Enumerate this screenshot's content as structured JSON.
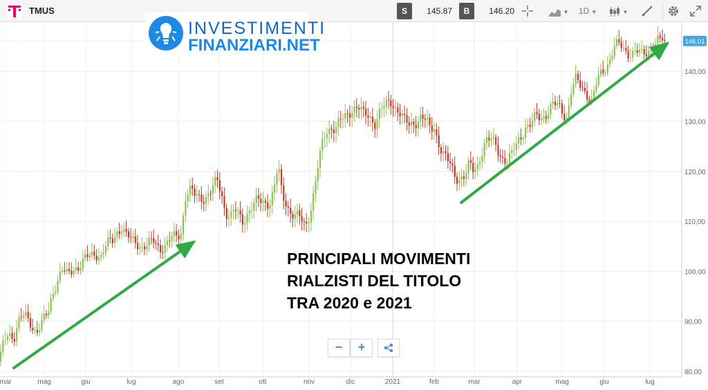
{
  "toolbar": {
    "symbol": "TMUS",
    "sell": {
      "label": "S",
      "price": "145.87"
    },
    "buy": {
      "label": "B",
      "price": "146.20"
    },
    "interval": "1D",
    "icons": {
      "brand": "telekom-t-logo-icon",
      "crosshair": "crosshair-icon",
      "chart_style": "area-chart-icon",
      "candles": "candlestick-icon",
      "draw": "drawing-tools-icon",
      "settings": "gear-icon",
      "fullscreen": "fullscreen-icon"
    },
    "brand_color": "#e20074"
  },
  "watermark": {
    "line1": "INVESTIMENTI",
    "line2": "FINANZIARI.NET"
  },
  "caption": {
    "line1": "PRINCIPALI MOVIMENTI",
    "line2": "RIALZISTI DEL TITOLO",
    "line3": "TRA 2020 e 2021"
  },
  "zoom": {
    "minus": "−",
    "plus": "+",
    "share_icon": "share-icon"
  },
  "chart_data": {
    "type": "candlestick",
    "ylim": [
      80,
      150
    ],
    "y_ticks": [
      "80,00",
      "90,00",
      "100,00",
      "110,00",
      "120,00",
      "130,00",
      "140,00"
    ],
    "x_ticks": [
      "mar",
      "mag",
      "giu",
      "lug",
      "ago",
      "set",
      "ott",
      "nov",
      "dic",
      "2021",
      "feb",
      "mar",
      "apr",
      "mag",
      "giu",
      "lug"
    ],
    "last_price": 146.01,
    "last_price_label": "146,01",
    "up_color": "#8cc152",
    "down_color": "#c0392b",
    "arrow_color": "#2eab42",
    "close_series": [
      [
        0,
        82
      ],
      [
        6,
        86
      ],
      [
        12,
        88
      ],
      [
        20,
        87
      ],
      [
        28,
        90
      ],
      [
        36,
        91
      ],
      [
        44,
        90
      ],
      [
        52,
        88
      ],
      [
        60,
        89
      ],
      [
        70,
        92
      ],
      [
        76,
        96
      ],
      [
        82,
        98
      ],
      [
        90,
        100
      ],
      [
        98,
        99
      ],
      [
        106,
        101
      ],
      [
        114,
        101
      ],
      [
        122,
        102
      ],
      [
        130,
        103
      ],
      [
        138,
        104
      ],
      [
        146,
        103
      ],
      [
        154,
        105
      ],
      [
        162,
        106
      ],
      [
        168,
        108
      ],
      [
        176,
        109
      ],
      [
        182,
        107
      ],
      [
        190,
        106
      ],
      [
        198,
        106
      ],
      [
        206,
        105
      ],
      [
        214,
        105
      ],
      [
        222,
        106
      ],
      [
        230,
        105
      ],
      [
        238,
        105
      ],
      [
        246,
        106
      ],
      [
        254,
        107
      ],
      [
        262,
        108
      ],
      [
        268,
        115
      ],
      [
        274,
        116
      ],
      [
        282,
        115
      ],
      [
        290,
        115
      ],
      [
        298,
        115
      ],
      [
        306,
        116
      ],
      [
        314,
        118
      ],
      [
        320,
        116
      ],
      [
        326,
        112
      ],
      [
        334,
        111
      ],
      [
        342,
        112
      ],
      [
        350,
        110
      ],
      [
        358,
        112
      ],
      [
        366,
        113
      ],
      [
        374,
        114
      ],
      [
        382,
        114
      ],
      [
        390,
        114
      ],
      [
        396,
        116
      ],
      [
        402,
        121
      ],
      [
        408,
        115
      ],
      [
        414,
        114
      ],
      [
        420,
        112
      ],
      [
        428,
        111
      ],
      [
        436,
        110
      ],
      [
        442,
        109
      ],
      [
        448,
        112
      ],
      [
        454,
        116
      ],
      [
        460,
        121
      ],
      [
        466,
        125
      ],
      [
        472,
        128
      ],
      [
        478,
        129
      ],
      [
        486,
        129
      ],
      [
        494,
        130
      ],
      [
        502,
        131
      ],
      [
        510,
        133
      ],
      [
        518,
        133
      ],
      [
        526,
        131
      ],
      [
        534,
        131
      ],
      [
        542,
        130
      ],
      [
        550,
        132
      ],
      [
        558,
        133
      ],
      [
        566,
        134
      ],
      [
        572,
        133
      ],
      [
        578,
        132
      ],
      [
        584,
        130
      ],
      [
        592,
        129
      ],
      [
        600,
        130
      ],
      [
        608,
        131
      ],
      [
        616,
        130
      ],
      [
        622,
        128
      ],
      [
        628,
        129
      ],
      [
        634,
        126
      ],
      [
        640,
        124
      ],
      [
        646,
        122
      ],
      [
        652,
        121
      ],
      [
        658,
        119
      ],
      [
        666,
        119
      ],
      [
        672,
        119
      ],
      [
        678,
        121
      ],
      [
        684,
        120
      ],
      [
        690,
        121
      ],
      [
        696,
        124
      ],
      [
        702,
        126
      ],
      [
        710,
        126
      ],
      [
        718,
        125
      ],
      [
        726,
        123
      ],
      [
        734,
        122
      ],
      [
        740,
        123
      ],
      [
        746,
        125
      ],
      [
        752,
        127
      ],
      [
        760,
        129
      ],
      [
        768,
        129
      ],
      [
        776,
        131
      ],
      [
        784,
        131
      ],
      [
        792,
        132
      ],
      [
        800,
        133
      ],
      [
        808,
        133
      ],
      [
        814,
        132
      ],
      [
        820,
        131
      ],
      [
        826,
        136
      ],
      [
        832,
        138
      ],
      [
        840,
        137
      ],
      [
        848,
        136
      ],
      [
        856,
        134
      ],
      [
        864,
        138
      ],
      [
        872,
        140
      ],
      [
        880,
        142
      ],
      [
        888,
        145
      ],
      [
        896,
        145
      ],
      [
        904,
        144
      ],
      [
        912,
        144
      ],
      [
        920,
        144
      ],
      [
        928,
        143
      ],
      [
        936,
        144
      ],
      [
        944,
        145
      ],
      [
        950,
        146
      ],
      [
        954,
        146
      ],
      [
        958,
        146
      ],
      [
        962,
        145
      ]
    ]
  }
}
